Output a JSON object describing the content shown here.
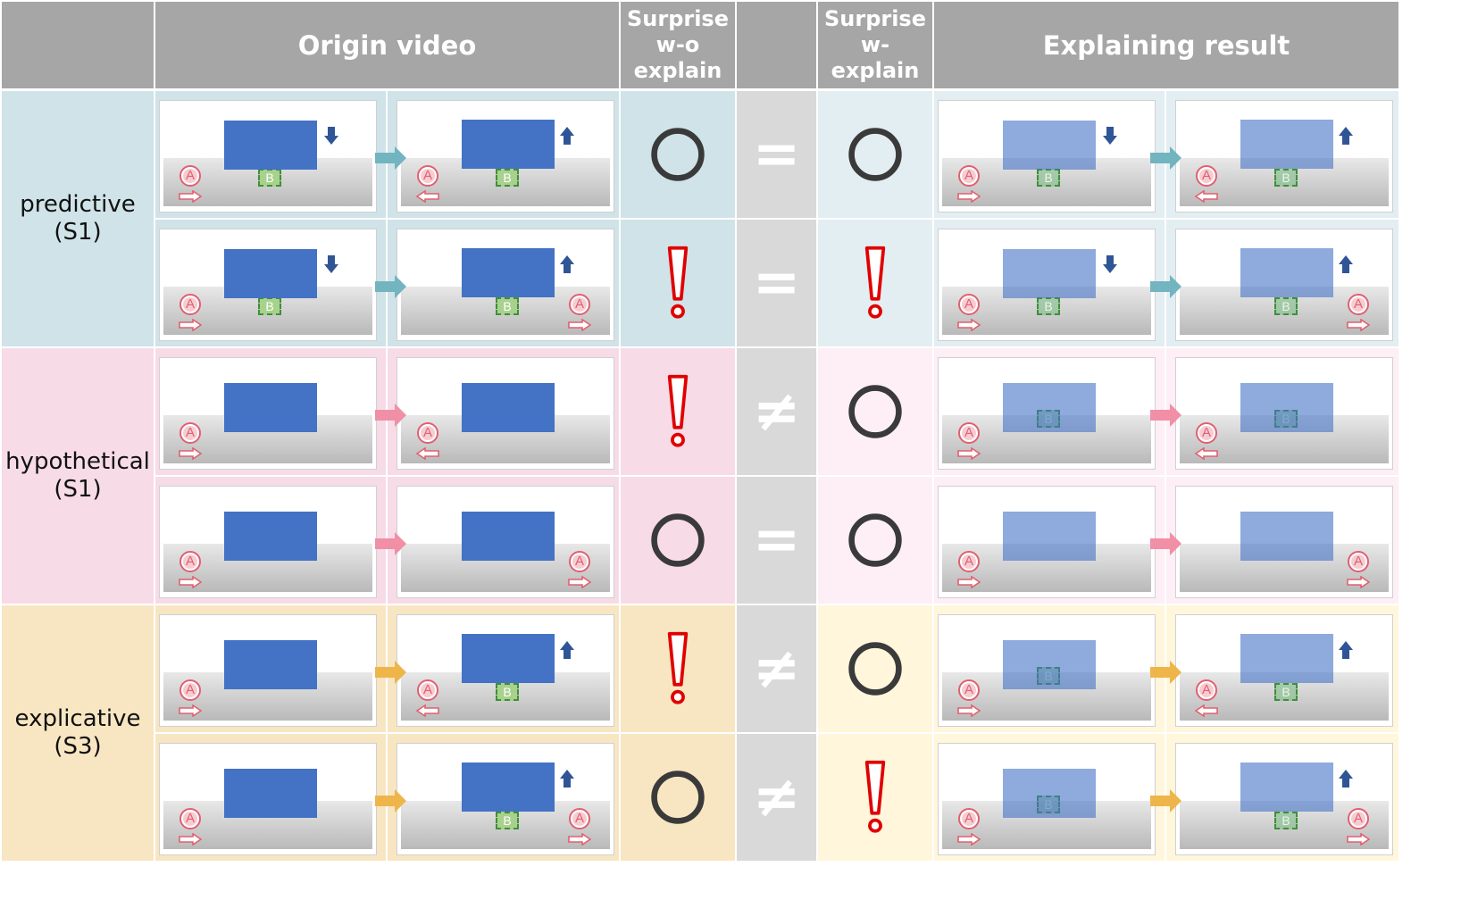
{
  "headers": {
    "origin_video": "Origin video",
    "surprise_wo": "Surprise\nw-o\nexplain",
    "surprise_w": "Surprise\nw-\nexplain",
    "explaining": "Explaining result"
  },
  "ball_label": "A",
  "box_label": "B",
  "symbols": {
    "circle": "circle-icon",
    "exclaim": "exclamation-icon"
  },
  "relations": {
    "eq": "=",
    "neq": "≠"
  },
  "colors": {
    "header": "#a6a6a6",
    "predictive_dark": "#cfe3e8",
    "predictive_light": "#e3eef2",
    "hypothetical_dark": "#f7dbe7",
    "hypothetical_light": "#fdeff5",
    "explicative_dark": "#f8e6c2",
    "explicative_light": "#fff6dc",
    "flow_predictive": "#72b4bf",
    "flow_hypothetical": "#f08fa6",
    "flow_explicative": "#eeb54a",
    "surprise_mark": "#e00000",
    "circle_mark": "#3a3a3a"
  },
  "groups": [
    {
      "label": "predictive\n(S1)",
      "theme": "predictive",
      "rows": [
        {
          "wo": "circle",
          "rel": "eq",
          "w": "circle",
          "frames": [
            {
              "panel": "down",
              "ball": "right",
              "box": true
            },
            {
              "panel": "up",
              "ball": "left-back",
              "box": true
            },
            {
              "panel": "down",
              "ball": "right",
              "box": true
            },
            {
              "panel": "up",
              "ball": "left-back",
              "box": true
            }
          ]
        },
        {
          "wo": "exclaim",
          "rel": "eq",
          "w": "exclaim",
          "frames": [
            {
              "panel": "down",
              "ball": "right",
              "box": true
            },
            {
              "panel": "up",
              "ball": "right-far",
              "box": true
            },
            {
              "panel": "down",
              "ball": "right",
              "box": true
            },
            {
              "panel": "up",
              "ball": "right-far",
              "box": true
            }
          ]
        }
      ]
    },
    {
      "label": "hypothetical\n(S1)",
      "theme": "hypothetical",
      "rows": [
        {
          "wo": "exclaim",
          "rel": "neq",
          "w": "circle",
          "frames": [
            {
              "panel": "none",
              "ball": "right",
              "box": false
            },
            {
              "panel": "none",
              "ball": "left-back",
              "box": false
            },
            {
              "panel": "none",
              "ball": "right",
              "box": true
            },
            {
              "panel": "none",
              "ball": "left-back",
              "box": true
            }
          ]
        },
        {
          "wo": "circle",
          "rel": "eq",
          "w": "circle",
          "frames": [
            {
              "panel": "none",
              "ball": "right",
              "box": false
            },
            {
              "panel": "none",
              "ball": "right-far",
              "box": false
            },
            {
              "panel": "none",
              "ball": "right",
              "box": false
            },
            {
              "panel": "none",
              "ball": "right-far",
              "box": false
            }
          ]
        }
      ]
    },
    {
      "label": "explicative\n(S3)",
      "theme": "explicative",
      "rows": [
        {
          "wo": "exclaim",
          "rel": "neq",
          "w": "circle",
          "frames": [
            {
              "panel": "none",
              "ball": "right",
              "box": false
            },
            {
              "panel": "up",
              "ball": "left-back",
              "box": true
            },
            {
              "panel": "none",
              "ball": "right",
              "box": true
            },
            {
              "panel": "up",
              "ball": "left-back",
              "box": true
            }
          ]
        },
        {
          "wo": "circle",
          "rel": "neq",
          "w": "exclaim",
          "frames": [
            {
              "panel": "none",
              "ball": "right",
              "box": false
            },
            {
              "panel": "up",
              "ball": "right-far",
              "box": true
            },
            {
              "panel": "none",
              "ball": "right",
              "box": true
            },
            {
              "panel": "up",
              "ball": "right-far",
              "box": true
            }
          ]
        }
      ]
    }
  ]
}
